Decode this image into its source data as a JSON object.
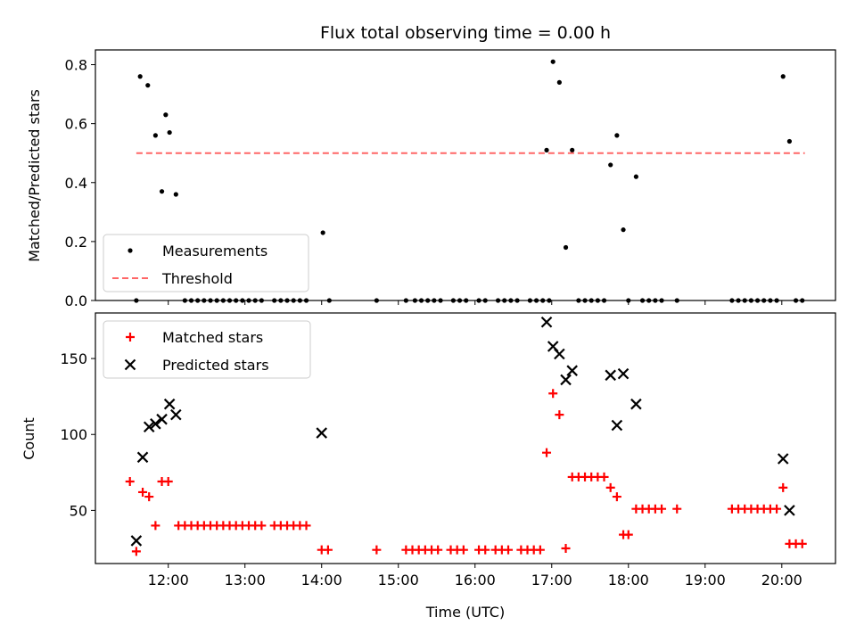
{
  "chart_data": [
    {
      "type": "scatter",
      "title": "Flux total observing time = 0.00 h",
      "ylabel": "Matched/Predicted stars",
      "xlabel": "",
      "ylim": [
        0,
        0.85
      ],
      "yticks": [
        0.0,
        0.2,
        0.4,
        0.6,
        0.8
      ],
      "ytick_labels": [
        "0.0",
        "0.2",
        "0.4",
        "0.6",
        "0.8"
      ],
      "legend_position": "lower-left",
      "series": [
        {
          "name": "Measurements",
          "marker": "dot",
          "color": "#000000",
          "points": [
            [
              "11:35",
              0.0
            ],
            [
              "11:38",
              0.76
            ],
            [
              "11:44",
              0.73
            ],
            [
              "11:50",
              0.56
            ],
            [
              "11:55",
              0.37
            ],
            [
              "11:58",
              0.63
            ],
            [
              "12:01",
              0.57
            ],
            [
              "12:06",
              0.36
            ],
            [
              "12:13",
              0.0
            ],
            [
              "12:18",
              0.0
            ],
            [
              "12:23",
              0.0
            ],
            [
              "12:28",
              0.0
            ],
            [
              "12:33",
              0.0
            ],
            [
              "12:38",
              0.0
            ],
            [
              "12:43",
              0.0
            ],
            [
              "12:48",
              0.0
            ],
            [
              "12:53",
              0.0
            ],
            [
              "12:58",
              0.0
            ],
            [
              "13:03",
              0.0
            ],
            [
              "13:08",
              0.0
            ],
            [
              "13:13",
              0.0
            ],
            [
              "13:23",
              0.0
            ],
            [
              "13:28",
              0.0
            ],
            [
              "13:33",
              0.0
            ],
            [
              "13:38",
              0.0
            ],
            [
              "13:43",
              0.0
            ],
            [
              "13:48",
              0.0
            ],
            [
              "14:01",
              0.23
            ],
            [
              "14:06",
              0.0
            ],
            [
              "14:43",
              0.0
            ],
            [
              "15:06",
              0.0
            ],
            [
              "15:13",
              0.0
            ],
            [
              "15:18",
              0.0
            ],
            [
              "15:23",
              0.0
            ],
            [
              "15:28",
              0.0
            ],
            [
              "15:33",
              0.0
            ],
            [
              "15:43",
              0.0
            ],
            [
              "15:48",
              0.0
            ],
            [
              "15:53",
              0.0
            ],
            [
              "16:03",
              0.0
            ],
            [
              "16:08",
              0.0
            ],
            [
              "16:18",
              0.0
            ],
            [
              "16:23",
              0.0
            ],
            [
              "16:28",
              0.0
            ],
            [
              "16:33",
              0.0
            ],
            [
              "16:43",
              0.0
            ],
            [
              "16:48",
              0.0
            ],
            [
              "16:53",
              0.0
            ],
            [
              "16:58",
              0.0
            ],
            [
              "16:56",
              0.51
            ],
            [
              "17:01",
              0.81
            ],
            [
              "17:06",
              0.74
            ],
            [
              "17:11",
              0.18
            ],
            [
              "17:16",
              0.51
            ],
            [
              "17:21",
              0.0
            ],
            [
              "17:26",
              0.0
            ],
            [
              "17:31",
              0.0
            ],
            [
              "17:36",
              0.0
            ],
            [
              "17:41",
              0.0
            ],
            [
              "17:46",
              0.46
            ],
            [
              "17:51",
              0.56
            ],
            [
              "17:56",
              0.24
            ],
            [
              "18:00",
              0.0
            ],
            [
              "18:06",
              0.42
            ],
            [
              "18:11",
              0.0
            ],
            [
              "18:16",
              0.0
            ],
            [
              "18:21",
              0.0
            ],
            [
              "18:26",
              0.0
            ],
            [
              "18:38",
              0.0
            ],
            [
              "19:21",
              0.0
            ],
            [
              "19:26",
              0.0
            ],
            [
              "19:31",
              0.0
            ],
            [
              "19:36",
              0.0
            ],
            [
              "19:41",
              0.0
            ],
            [
              "19:46",
              0.0
            ],
            [
              "19:51",
              0.0
            ],
            [
              "19:56",
              0.0
            ],
            [
              "20:01",
              0.76
            ],
            [
              "20:06",
              0.54
            ],
            [
              "20:11",
              0.0
            ],
            [
              "20:16",
              0.0
            ]
          ]
        },
        {
          "name": "Threshold",
          "line_style": "dashed",
          "color": "#ff6666",
          "x": [
            "11:35",
            "20:18"
          ],
          "y": [
            0.5,
            0.5
          ]
        }
      ]
    },
    {
      "type": "scatter",
      "title": "",
      "ylabel": "Count",
      "xlabel": "Time (UTC)",
      "ylim": [
        15,
        180
      ],
      "yticks": [
        50,
        100,
        150
      ],
      "ytick_labels": [
        "50",
        "100",
        "150"
      ],
      "x_tick_labels": [
        "12:00",
        "13:00",
        "14:00",
        "15:00",
        "16:00",
        "17:00",
        "18:00",
        "19:00",
        "20:00"
      ],
      "legend_position": "upper-left",
      "series": [
        {
          "name": "Matched stars",
          "marker": "plus",
          "color": "#ff0000",
          "points": [
            [
              "11:30",
              69
            ],
            [
              "11:35",
              23
            ],
            [
              "11:40",
              62
            ],
            [
              "11:45",
              59
            ],
            [
              "11:50",
              40
            ],
            [
              "11:55",
              69
            ],
            [
              "12:00",
              69
            ],
            [
              "12:08",
              40
            ],
            [
              "12:13",
              40
            ],
            [
              "12:18",
              40
            ],
            [
              "12:23",
              40
            ],
            [
              "12:28",
              40
            ],
            [
              "12:33",
              40
            ],
            [
              "12:38",
              40
            ],
            [
              "12:43",
              40
            ],
            [
              "12:48",
              40
            ],
            [
              "12:53",
              40
            ],
            [
              "12:58",
              40
            ],
            [
              "13:03",
              40
            ],
            [
              "13:08",
              40
            ],
            [
              "13:13",
              40
            ],
            [
              "13:23",
              40
            ],
            [
              "13:28",
              40
            ],
            [
              "13:33",
              40
            ],
            [
              "13:38",
              40
            ],
            [
              "13:43",
              40
            ],
            [
              "13:48",
              40
            ],
            [
              "14:00",
              24
            ],
            [
              "14:05",
              24
            ],
            [
              "14:43",
              24
            ],
            [
              "15:06",
              24
            ],
            [
              "15:11",
              24
            ],
            [
              "15:16",
              24
            ],
            [
              "15:21",
              24
            ],
            [
              "15:26",
              24
            ],
            [
              "15:31",
              24
            ],
            [
              "15:41",
              24
            ],
            [
              "15:46",
              24
            ],
            [
              "15:51",
              24
            ],
            [
              "16:03",
              24
            ],
            [
              "16:08",
              24
            ],
            [
              "16:16",
              24
            ],
            [
              "16:21",
              24
            ],
            [
              "16:26",
              24
            ],
            [
              "16:36",
              24
            ],
            [
              "16:41",
              24
            ],
            [
              "16:46",
              24
            ],
            [
              "16:51",
              24
            ],
            [
              "16:56",
              88
            ],
            [
              "17:01",
              127
            ],
            [
              "17:06",
              113
            ],
            [
              "17:11",
              25
            ],
            [
              "17:16",
              72
            ],
            [
              "17:21",
              72
            ],
            [
              "17:26",
              72
            ],
            [
              "17:31",
              72
            ],
            [
              "17:36",
              72
            ],
            [
              "17:41",
              72
            ],
            [
              "17:46",
              65
            ],
            [
              "17:51",
              59
            ],
            [
              "17:56",
              34
            ],
            [
              "18:00",
              34
            ],
            [
              "18:06",
              51
            ],
            [
              "18:11",
              51
            ],
            [
              "18:16",
              51
            ],
            [
              "18:21",
              51
            ],
            [
              "18:26",
              51
            ],
            [
              "18:38",
              51
            ],
            [
              "19:21",
              51
            ],
            [
              "19:26",
              51
            ],
            [
              "19:31",
              51
            ],
            [
              "19:36",
              51
            ],
            [
              "19:41",
              51
            ],
            [
              "19:46",
              51
            ],
            [
              "19:51",
              51
            ],
            [
              "19:56",
              51
            ],
            [
              "20:01",
              65
            ],
            [
              "20:06",
              28
            ],
            [
              "20:11",
              28
            ],
            [
              "20:16",
              28
            ]
          ]
        },
        {
          "name": "Predicted stars",
          "marker": "x",
          "color": "#000000",
          "points": [
            [
              "11:35",
              30
            ],
            [
              "11:40",
              85
            ],
            [
              "11:45",
              105
            ],
            [
              "11:50",
              107
            ],
            [
              "11:55",
              110
            ],
            [
              "12:01",
              120
            ],
            [
              "12:06",
              113
            ],
            [
              "14:00",
              101
            ],
            [
              "16:56",
              174
            ],
            [
              "17:01",
              158
            ],
            [
              "17:06",
              153
            ],
            [
              "17:11",
              136
            ],
            [
              "17:16",
              142
            ],
            [
              "17:46",
              139
            ],
            [
              "17:51",
              106
            ],
            [
              "17:56",
              140
            ],
            [
              "18:06",
              120
            ],
            [
              "20:01",
              84
            ],
            [
              "20:06",
              50
            ]
          ]
        }
      ]
    }
  ]
}
